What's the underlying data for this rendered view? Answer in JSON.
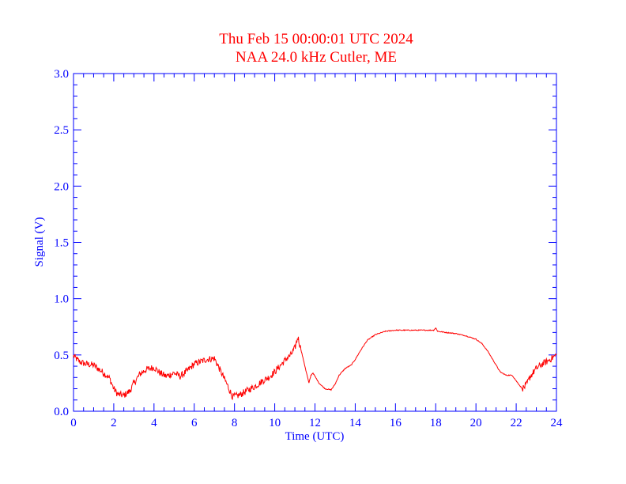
{
  "chart_data": {
    "type": "line",
    "title": "Thu Feb 15 00:00:01 UTC 2024",
    "subtitle": "NAA 24.0 kHz Cutler, ME",
    "xlabel": "Time (UTC)",
    "ylabel": "Signal (V)",
    "xlim": [
      0,
      24
    ],
    "ylim": [
      0,
      3
    ],
    "x_ticks": [
      "0",
      "2",
      "4",
      "6",
      "8",
      "10",
      "12",
      "14",
      "16",
      "18",
      "20",
      "22",
      "24"
    ],
    "y_ticks": [
      "0.0",
      "0.5",
      "1.0",
      "1.5",
      "2.0",
      "2.5",
      "3.0"
    ],
    "axis_color": "#0000ff",
    "line_color": "#ff0000",
    "title_color": "#ff0000",
    "grid": false,
    "series": [
      {
        "x": [
          0.0,
          0.3,
          0.6,
          1.0,
          1.5,
          1.8,
          2.0,
          2.2,
          2.5,
          2.8,
          3.0,
          3.3,
          3.6,
          4.0,
          4.3,
          4.6,
          5.0,
          5.3,
          5.6,
          6.0,
          6.3,
          6.6,
          7.0,
          7.3,
          7.6,
          7.9,
          8.2,
          8.5,
          8.8,
          9.1,
          9.4,
          9.7,
          10.0,
          10.3,
          10.6,
          10.8,
          11.0,
          11.15,
          11.3,
          11.5,
          11.7,
          11.8,
          11.9,
          12.0,
          12.2,
          12.5,
          12.8,
          13.0,
          13.2,
          13.5,
          13.8,
          14.0,
          14.3,
          14.6,
          15.0,
          15.5,
          16.0,
          16.5,
          17.0,
          17.5,
          17.9,
          18.0,
          18.1,
          18.5,
          19.0,
          19.5,
          20.0,
          20.3,
          20.6,
          20.9,
          21.2,
          21.5,
          21.8,
          22.0,
          22.3,
          22.5,
          22.7,
          23.0,
          23.3,
          23.6,
          24.0
        ],
        "y": [
          0.49,
          0.44,
          0.42,
          0.41,
          0.34,
          0.29,
          0.2,
          0.15,
          0.14,
          0.18,
          0.25,
          0.33,
          0.37,
          0.39,
          0.34,
          0.31,
          0.34,
          0.31,
          0.35,
          0.42,
          0.44,
          0.46,
          0.47,
          0.36,
          0.25,
          0.13,
          0.14,
          0.17,
          0.2,
          0.23,
          0.27,
          0.3,
          0.35,
          0.41,
          0.47,
          0.5,
          0.56,
          0.66,
          0.55,
          0.4,
          0.25,
          0.32,
          0.34,
          0.31,
          0.25,
          0.2,
          0.19,
          0.24,
          0.32,
          0.38,
          0.41,
          0.46,
          0.55,
          0.63,
          0.68,
          0.71,
          0.72,
          0.72,
          0.72,
          0.72,
          0.72,
          0.74,
          0.71,
          0.7,
          0.69,
          0.67,
          0.64,
          0.6,
          0.53,
          0.44,
          0.35,
          0.32,
          0.32,
          0.27,
          0.2,
          0.23,
          0.31,
          0.38,
          0.42,
          0.45,
          0.5
        ]
      }
    ]
  }
}
